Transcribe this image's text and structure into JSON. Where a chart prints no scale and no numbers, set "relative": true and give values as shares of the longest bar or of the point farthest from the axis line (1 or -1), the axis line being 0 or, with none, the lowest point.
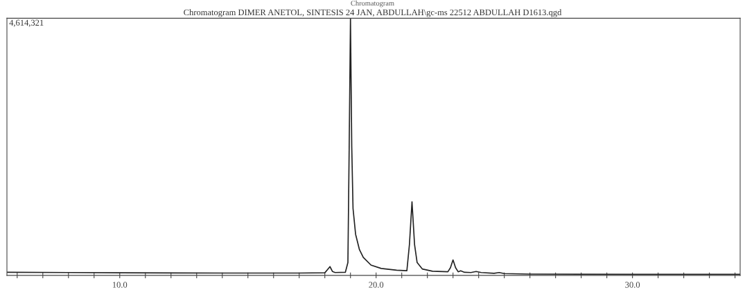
{
  "chart_data": {
    "type": "line",
    "title": "Chromatogram",
    "subtitle": "Chromatogram DIMER ANETOL, SINTESIS 24 JAN, ABDULLAH\\gc-ms 22512 ABDULLAH D1613.qgd",
    "relative": true,
    "color": "#222222",
    "marker": "none",
    "line_style": "solid",
    "grid": false,
    "annotations": [
      "4,614,321"
    ],
    "xlim": [
      5.6,
      34.2
    ],
    "xticks": [
      {
        "value": 6,
        "label": null
      },
      {
        "value": 7,
        "label": null
      },
      {
        "value": 8,
        "label": null
      },
      {
        "value": 9,
        "label": null
      },
      {
        "value": 10,
        "label": "10.0"
      },
      {
        "value": 11,
        "label": null
      },
      {
        "value": 12,
        "label": null
      },
      {
        "value": 13,
        "label": null
      },
      {
        "value": 14,
        "label": null
      },
      {
        "value": 15,
        "label": null
      },
      {
        "value": 16,
        "label": null
      },
      {
        "value": 17,
        "label": null
      },
      {
        "value": 18,
        "label": null
      },
      {
        "value": 19,
        "label": null
      },
      {
        "value": 20,
        "label": "20.0"
      },
      {
        "value": 21,
        "label": null
      },
      {
        "value": 22,
        "label": null
      },
      {
        "value": 23,
        "label": null
      },
      {
        "value": 24,
        "label": null
      },
      {
        "value": 25,
        "label": null
      },
      {
        "value": 26,
        "label": null
      },
      {
        "value": 27,
        "label": null
      },
      {
        "value": 28,
        "label": null
      },
      {
        "value": 29,
        "label": null
      },
      {
        "value": 30,
        "label": "30.0"
      },
      {
        "value": 31,
        "label": null
      },
      {
        "value": 32,
        "label": null
      },
      {
        "value": 33,
        "label": null
      },
      {
        "value": 34,
        "label": null
      }
    ],
    "x": [
      5.6,
      8.0,
      10.0,
      14.0,
      17.0,
      18.0,
      18.1,
      18.2,
      18.3,
      18.4,
      18.8,
      18.9,
      18.95,
      19.0,
      19.05,
      19.1,
      19.2,
      19.35,
      19.5,
      19.8,
      20.2,
      20.8,
      21.2,
      21.3,
      21.4,
      21.5,
      21.6,
      21.8,
      22.2,
      22.8,
      22.9,
      23.0,
      23.1,
      23.2,
      23.3,
      23.45,
      23.7,
      23.9,
      24.1,
      24.6,
      24.8,
      25.0,
      26.0,
      30.0,
      34.2
    ],
    "values": [
      0.012,
      0.011,
      0.01,
      0.009,
      0.009,
      0.01,
      0.022,
      0.034,
      0.015,
      0.011,
      0.012,
      0.05,
      0.5,
      1.0,
      0.5,
      0.26,
      0.16,
      0.1,
      0.07,
      0.04,
      0.027,
      0.02,
      0.018,
      0.12,
      0.286,
      0.12,
      0.05,
      0.025,
      0.016,
      0.014,
      0.03,
      0.06,
      0.03,
      0.014,
      0.018,
      0.012,
      0.011,
      0.015,
      0.011,
      0.008,
      0.011,
      0.007,
      0.005,
      0.004,
      0.004
    ]
  }
}
